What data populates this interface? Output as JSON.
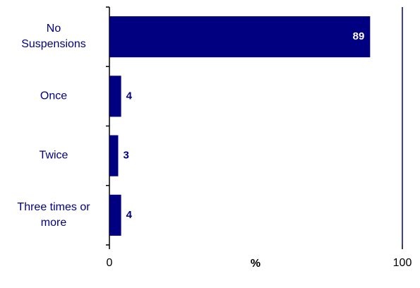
{
  "chart_data": {
    "type": "bar",
    "orientation": "horizontal",
    "categories": [
      "No Suspensions",
      "Once",
      "Twice",
      "Three times or more"
    ],
    "values": [
      89,
      4,
      3,
      4
    ],
    "color": "#000080",
    "xlim": [
      0,
      100
    ],
    "xticks": [
      0,
      100
    ],
    "xlabel": "%"
  }
}
